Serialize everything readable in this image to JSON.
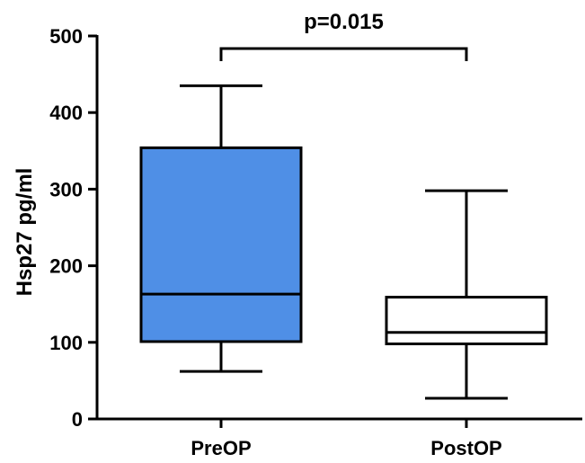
{
  "chart_data": {
    "type": "box",
    "ylabel": "Hsp27 pg/ml",
    "ylim": [
      0,
      500
    ],
    "yticks": [
      "0",
      "100",
      "200",
      "300",
      "400",
      "500"
    ],
    "categories": [
      "PreOP",
      "PostOP"
    ],
    "boxes": [
      {
        "name": "PreOP",
        "min": 62,
        "q1": 101,
        "median": 163,
        "q3": 354,
        "max": 435,
        "fill": "#4f8fe6"
      },
      {
        "name": "PostOP",
        "min": 27,
        "q1": 98,
        "median": 113,
        "q3": 159,
        "max": 298,
        "fill": "#ffffff"
      }
    ],
    "annotation": {
      "text": "p=0.015",
      "between": [
        "PreOP",
        "PostOP"
      ]
    },
    "grid": false
  }
}
